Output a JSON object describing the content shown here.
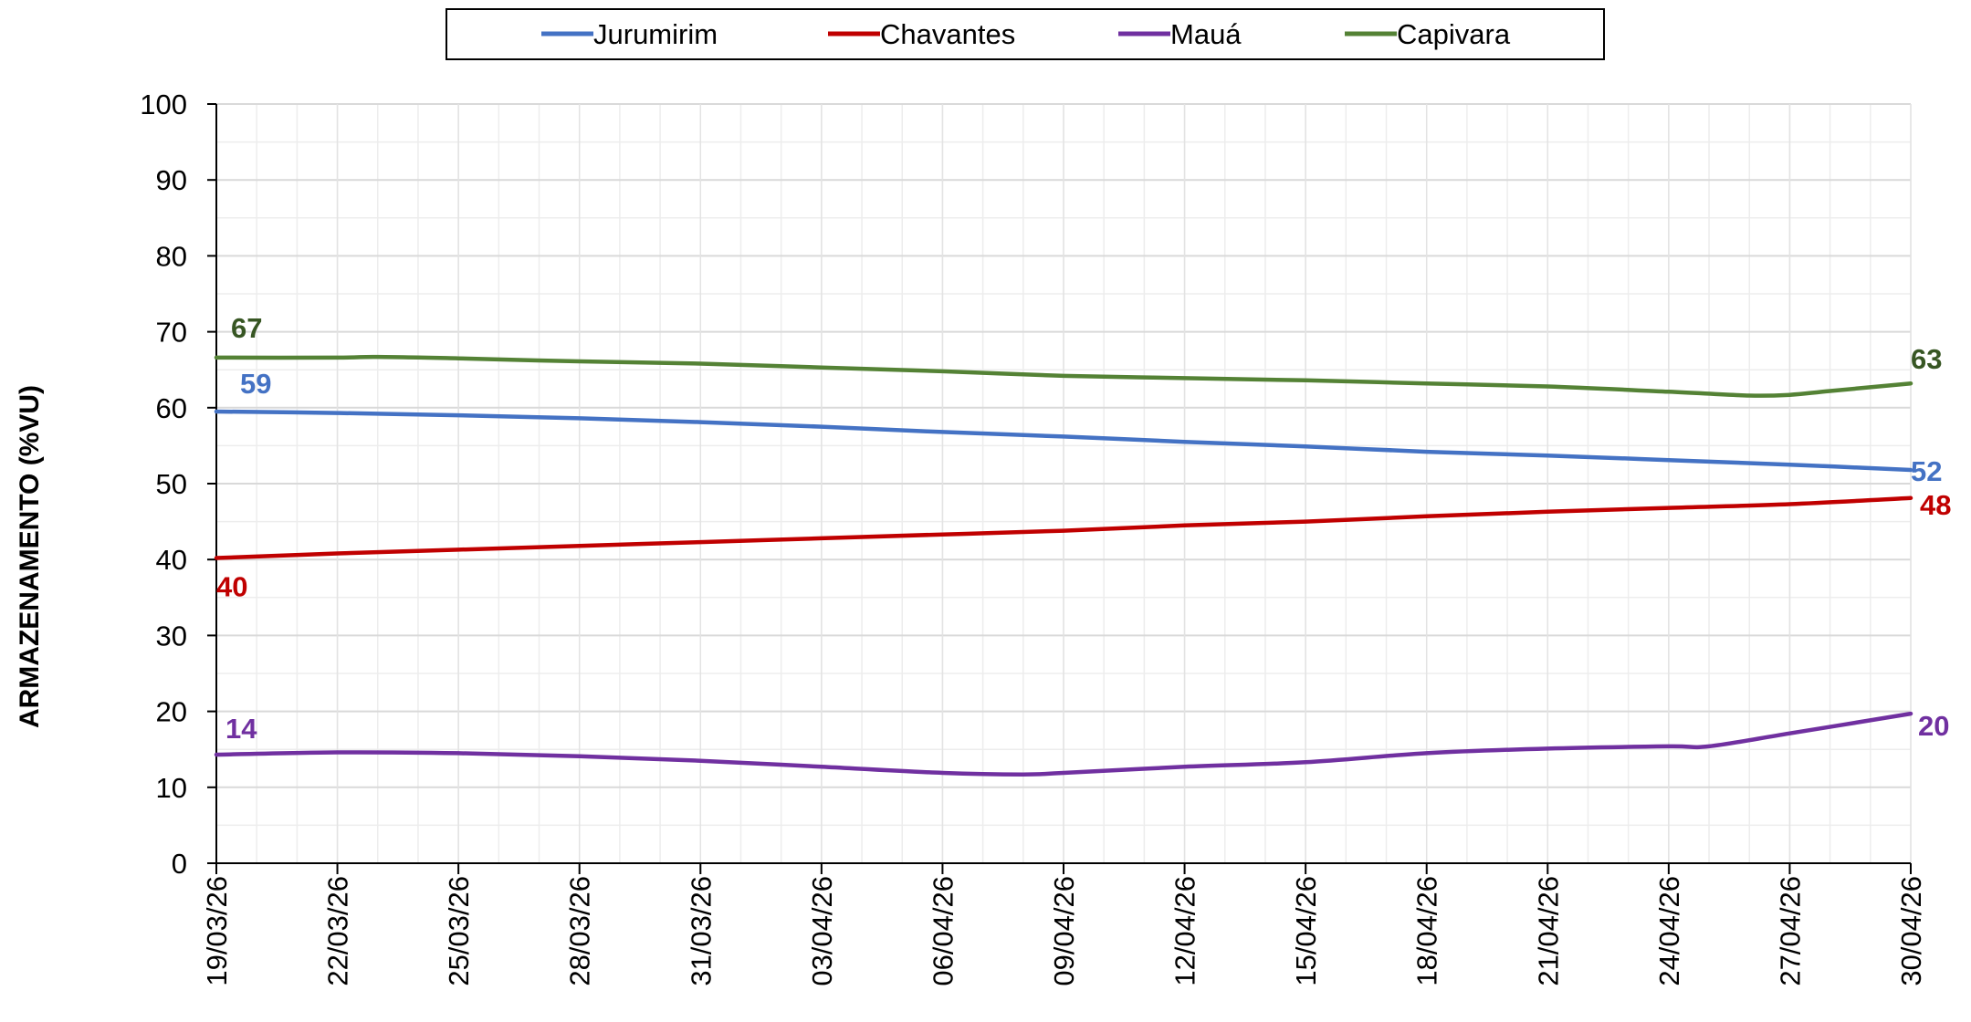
{
  "chart_data": {
    "type": "line",
    "title": "",
    "xlabel": "",
    "ylabel": "ARMAZENAMENTO (%VU)",
    "ylim": [
      0,
      100
    ],
    "yticks": [
      0,
      10,
      20,
      30,
      40,
      50,
      60,
      70,
      80,
      90,
      100
    ],
    "x_start": "19/03/26",
    "x_end": "30/04/26",
    "xticks": [
      "19/03/26",
      "22/03/26",
      "25/03/26",
      "28/03/26",
      "31/03/26",
      "03/04/26",
      "06/04/26",
      "09/04/26",
      "12/04/26",
      "15/04/26",
      "18/04/26",
      "21/04/26",
      "24/04/26",
      "27/04/26",
      "30/04/26"
    ],
    "grid": true,
    "legend_position": "top-center",
    "series": [
      {
        "name": "Jurumirim",
        "color": "#4472C4",
        "label_start": "59",
        "label_end": "52",
        "x": [
          "19/03/26",
          "22/03/26",
          "25/03/26",
          "28/03/26",
          "31/03/26",
          "03/04/26",
          "06/04/26",
          "09/04/26",
          "12/04/26",
          "15/04/26",
          "18/04/26",
          "21/04/26",
          "24/04/26",
          "27/04/26",
          "30/04/26"
        ],
        "values": [
          59.5,
          59.3,
          59.0,
          58.6,
          58.1,
          57.5,
          56.8,
          56.2,
          55.5,
          54.9,
          54.2,
          53.7,
          53.1,
          52.5,
          51.8
        ]
      },
      {
        "name": "Chavantes",
        "color": "#C00000",
        "label_start": "40",
        "label_end": "48",
        "x": [
          "19/03/26",
          "22/03/26",
          "25/03/26",
          "28/03/26",
          "31/03/26",
          "03/04/26",
          "06/04/26",
          "09/04/26",
          "12/04/26",
          "15/04/26",
          "18/04/26",
          "21/04/26",
          "24/04/26",
          "27/04/26",
          "30/04/26"
        ],
        "values": [
          40.2,
          40.8,
          41.3,
          41.8,
          42.3,
          42.8,
          43.3,
          43.8,
          44.5,
          45.0,
          45.7,
          46.3,
          46.8,
          47.3,
          48.1
        ]
      },
      {
        "name": "Mauá",
        "color": "#7030A0",
        "label_start": "14",
        "label_end": "20",
        "x": [
          "19/03/26",
          "22/03/26",
          "25/03/26",
          "28/03/26",
          "31/03/26",
          "03/04/26",
          "06/04/26",
          "08/04/26",
          "09/04/26",
          "12/04/26",
          "15/04/26",
          "18/04/26",
          "21/04/26",
          "24/04/26",
          "25/04/26",
          "27/04/26",
          "30/04/26"
        ],
        "values": [
          14.3,
          14.6,
          14.5,
          14.1,
          13.5,
          12.7,
          11.9,
          11.7,
          11.9,
          12.7,
          13.3,
          14.5,
          15.1,
          15.4,
          15.4,
          17.1,
          19.7
        ]
      },
      {
        "name": "Capivara",
        "color": "#548235",
        "label_color": "#375623",
        "label_start": "67",
        "label_end": "63",
        "x": [
          "19/03/26",
          "22/03/26",
          "23/03/26",
          "25/03/26",
          "28/03/26",
          "31/03/26",
          "03/04/26",
          "06/04/26",
          "09/04/26",
          "12/04/26",
          "15/04/26",
          "18/04/26",
          "21/04/26",
          "24/04/26",
          "26/04/26",
          "27/04/26",
          "28/04/26",
          "30/04/26"
        ],
        "values": [
          66.6,
          66.6,
          66.7,
          66.5,
          66.1,
          65.8,
          65.3,
          64.8,
          64.2,
          63.9,
          63.6,
          63.2,
          62.8,
          62.1,
          61.6,
          61.7,
          62.2,
          63.2
        ]
      }
    ]
  }
}
